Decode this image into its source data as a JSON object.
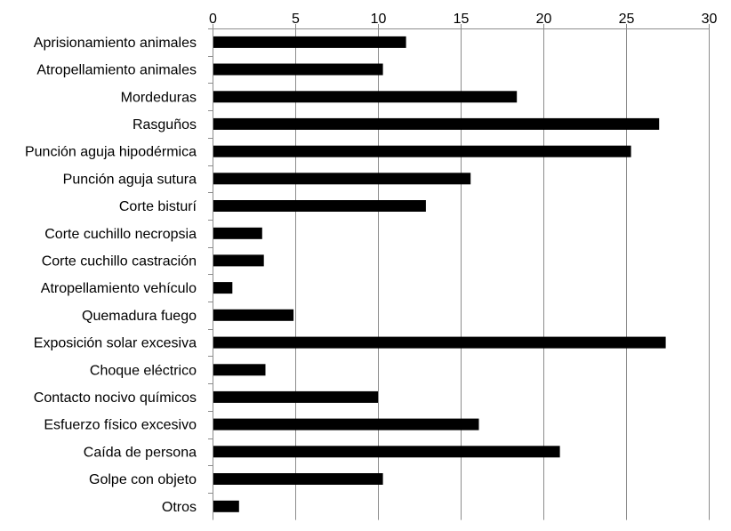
{
  "chart_data": {
    "type": "bar",
    "orientation": "horizontal",
    "title": "",
    "xlabel": "",
    "ylabel": "",
    "xlim": [
      0,
      30
    ],
    "x_ticks": [
      0,
      5,
      10,
      15,
      20,
      25,
      30
    ],
    "x_axis_position": "top",
    "grid": "vertical",
    "legend": "none",
    "bar_color": "#000000",
    "categories": [
      "Aprisionamiento animales",
      "Atropellamiento animales",
      "Mordeduras",
      "Rasguños",
      "Punción aguja hipodérmica",
      "Punción aguja sutura",
      "Corte bisturí",
      "Corte cuchillo necropsia",
      "Corte cuchillo castración",
      "Atropellamiento vehículo",
      "Quemadura fuego",
      "Exposición solar excesiva",
      "Choque eléctrico",
      "Contacto nocivo químicos",
      "Esfuerzo físico excesivo",
      "Caída de persona",
      "Golpe con objeto",
      "Otros"
    ],
    "values": [
      11.7,
      10.3,
      18.4,
      27.0,
      25.3,
      15.6,
      12.9,
      3.0,
      3.1,
      1.2,
      4.9,
      27.4,
      3.2,
      10.0,
      16.1,
      21.0,
      10.3,
      1.6
    ]
  }
}
